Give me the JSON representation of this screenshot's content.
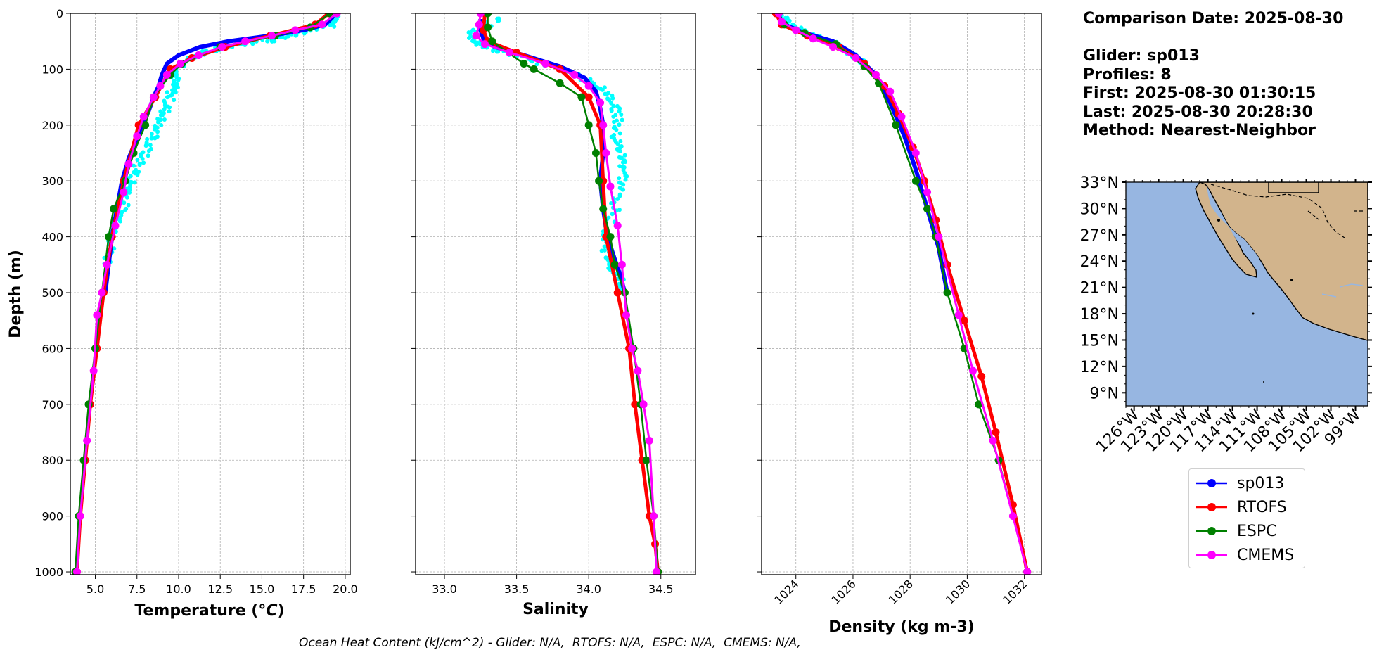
{
  "info": {
    "comparison_date": "Comparison Date: 2025-08-30",
    "glider": "Glider: sp013",
    "profiles": "Profiles: 8",
    "first": "First: 2025-08-30 01:30:15",
    "last": "Last: 2025-08-30 20:28:30",
    "method": "Method: Nearest-Neighbor"
  },
  "footer": "Ocean Heat Content (kJ/cm^2) - Glider: N/A,  RTOFS: N/A,  ESPC: N/A,  CMEMS: N/A,",
  "legend": [
    {
      "name": "sp013",
      "color": "#0000ff"
    },
    {
      "name": "RTOFS",
      "color": "#ff0000"
    },
    {
      "name": "ESPC",
      "color": "#008000"
    },
    {
      "name": "CMEMS",
      "color": "#ff00ff"
    }
  ],
  "raw_color": "#00ffff",
  "chart_data": [
    {
      "type": "line",
      "xlabel": "Temperature (°C)",
      "ylabel": "Depth (m)",
      "xlim": [
        3.5,
        20.3
      ],
      "ylim": [
        1005,
        0
      ],
      "xticks": [
        5.0,
        7.5,
        10.0,
        12.5,
        15.0,
        17.5,
        20.0
      ],
      "xtick_labels": [
        "5.0",
        "7.5",
        "10.0",
        "12.5",
        "15.0",
        "17.5",
        "20.0"
      ],
      "yticks": [
        0,
        100,
        200,
        300,
        400,
        500,
        600,
        700,
        800,
        900,
        1000
      ],
      "ytick_labels": [
        "0",
        "100",
        "200",
        "300",
        "400",
        "500",
        "600",
        "700",
        "800",
        "900",
        "1000"
      ],
      "grid": true,
      "raw": {
        "x": [
          19.6,
          19.2,
          18.0,
          16.8,
          15.0,
          12.8,
          11.2,
          10.3,
          9.8,
          9.7,
          9.5,
          9.2,
          8.8,
          8.3,
          7.8,
          7.3,
          7.0,
          6.6,
          6.3,
          5.9,
          5.7
        ],
        "y": [
          5,
          20,
          30,
          40,
          50,
          60,
          75,
          90,
          110,
          130,
          150,
          175,
          200,
          230,
          260,
          290,
          320,
          350,
          380,
          420,
          450
        ]
      },
      "series": [
        {
          "name": "sp013",
          "x": [
            19.3,
            18.8,
            17.5,
            15.5,
            13.0,
            11.3,
            10.0,
            9.3,
            9.0,
            8.8,
            8.5,
            8.2,
            7.8,
            7.4,
            7.0,
            6.6,
            6.3,
            6.0,
            5.8,
            5.6
          ],
          "y": [
            5,
            20,
            30,
            40,
            50,
            60,
            75,
            90,
            110,
            130,
            150,
            175,
            200,
            230,
            260,
            300,
            350,
            400,
            450,
            500
          ]
        },
        {
          "name": "RTOFS",
          "x": [
            19.0,
            18.2,
            15.5,
            12.8,
            10.8,
            9.5,
            8.6,
            7.6,
            6.7,
            6.0,
            5.5,
            5.1,
            4.7,
            4.4,
            4.1,
            3.9
          ],
          "y": [
            0,
            20,
            40,
            60,
            80,
            100,
            150,
            200,
            300,
            400,
            500,
            600,
            700,
            800,
            900,
            1000
          ]
        },
        {
          "name": "ESPC",
          "x": [
            19.1,
            17.9,
            15.8,
            12.5,
            10.2,
            9.5,
            8.5,
            8.0,
            7.3,
            6.8,
            6.1,
            5.8,
            5.4,
            5.0,
            4.6,
            4.3,
            4.0,
            3.8
          ],
          "y": [
            0,
            25,
            40,
            60,
            90,
            110,
            150,
            200,
            250,
            300,
            350,
            400,
            500,
            600,
            700,
            800,
            900,
            1000
          ]
        },
        {
          "name": "CMEMS",
          "x": [
            19.5,
            18.6,
            17.0,
            15.6,
            14.0,
            12.6,
            11.2,
            10.1,
            9.3,
            8.9,
            8.5,
            7.9,
            7.5,
            7.0,
            6.7,
            6.2,
            5.7,
            5.4,
            5.1,
            4.9,
            4.5,
            4.1,
            3.9
          ],
          "y": [
            0,
            20,
            30,
            40,
            50,
            60,
            75,
            90,
            110,
            130,
            150,
            185,
            220,
            270,
            320,
            380,
            450,
            500,
            540,
            640,
            765,
            900,
            1000
          ]
        }
      ]
    },
    {
      "type": "line",
      "xlabel": "Salinity",
      "ylabel": "",
      "xlim": [
        32.8,
        34.74
      ],
      "ylim": [
        1005,
        0
      ],
      "xticks": [
        33.0,
        33.5,
        34.0,
        34.5
      ],
      "xtick_labels": [
        "33.0",
        "33.5",
        "34.0",
        "34.5"
      ],
      "yticks": [
        0,
        100,
        200,
        300,
        400,
        500,
        600,
        700,
        800,
        900,
        1000
      ],
      "ytick_labels": [],
      "grid": true,
      "raw": {
        "x": [
          33.4,
          33.2,
          33.2,
          33.3,
          33.5,
          33.75,
          33.95,
          34.1,
          34.18,
          34.2,
          34.18,
          34.22,
          34.25,
          34.22,
          34.18,
          34.12,
          34.12,
          34.18,
          34.23,
          34.25
        ],
        "y": [
          10,
          30,
          50,
          60,
          75,
          95,
          115,
          135,
          160,
          190,
          220,
          250,
          280,
          310,
          350,
          400,
          430,
          460,
          480,
          500
        ]
      },
      "series": [
        {
          "name": "sp013",
          "x": [
            33.25,
            33.25,
            33.27,
            33.35,
            33.55,
            33.8,
            33.97,
            34.05,
            34.08,
            34.1,
            34.1,
            34.08,
            34.1,
            34.13,
            34.18,
            34.22,
            34.25
          ],
          "y": [
            10,
            30,
            45,
            60,
            75,
            95,
            115,
            140,
            170,
            200,
            250,
            300,
            350,
            400,
            440,
            470,
            500
          ]
        },
        {
          "name": "RTOFS",
          "x": [
            33.28,
            33.27,
            33.3,
            33.5,
            33.8,
            34.0,
            34.08,
            34.1,
            34.12,
            34.2,
            34.28,
            34.32,
            34.37,
            34.42,
            34.46,
            34.48
          ],
          "y": [
            0,
            30,
            50,
            70,
            100,
            150,
            200,
            300,
            400,
            500,
            600,
            700,
            800,
            900,
            950,
            1000
          ]
        },
        {
          "name": "ESPC",
          "x": [
            33.3,
            33.3,
            33.33,
            33.55,
            33.62,
            33.8,
            33.95,
            34.0,
            34.05,
            34.07,
            34.1,
            34.15,
            34.18,
            34.25,
            34.31,
            34.36,
            34.4,
            34.45,
            34.48
          ],
          "y": [
            0,
            25,
            50,
            90,
            100,
            125,
            150,
            200,
            250,
            300,
            350,
            400,
            450,
            500,
            600,
            700,
            800,
            900,
            1000
          ]
        },
        {
          "name": "CMEMS",
          "x": [
            33.25,
            33.24,
            33.22,
            33.28,
            33.45,
            33.7,
            33.9,
            34.0,
            34.08,
            34.1,
            34.12,
            34.15,
            34.2,
            34.23,
            34.26,
            34.3,
            34.34,
            34.38,
            34.42,
            34.45,
            34.47
          ],
          "y": [
            0,
            20,
            40,
            55,
            70,
            90,
            110,
            130,
            160,
            200,
            250,
            310,
            380,
            450,
            540,
            600,
            640,
            700,
            765,
            900,
            1000
          ]
        }
      ]
    },
    {
      "type": "line",
      "xlabel": "Density (kg m-3)",
      "ylabel": "",
      "xlim": [
        1022.8,
        1032.6
      ],
      "ylim": [
        1005,
        0
      ],
      "xticks": [
        1024,
        1026,
        1028,
        1030,
        1032
      ],
      "xtick_labels": [
        "1024",
        "1026",
        "1028",
        "1030",
        "1032"
      ],
      "yticks": [
        0,
        100,
        200,
        300,
        400,
        500,
        600,
        700,
        800,
        900,
        1000
      ],
      "ytick_labels": [],
      "grid": true,
      "raw": {
        "x": [
          1023.5,
          1023.8,
          1024.4,
          1025.2,
          1025.9,
          1026.4
        ],
        "y": [
          5,
          20,
          35,
          50,
          70,
          90
        ]
      },
      "series": [
        {
          "name": "sp013",
          "x": [
            1023.4,
            1023.6,
            1024.3,
            1025.3,
            1026.1,
            1026.8,
            1027.3,
            1027.8,
            1028.2,
            1028.6,
            1029.0,
            1029.3
          ],
          "y": [
            5,
            20,
            35,
            50,
            75,
            110,
            160,
            220,
            280,
            350,
            420,
            500
          ]
        },
        {
          "name": "RTOFS",
          "x": [
            1023.3,
            1023.5,
            1024.4,
            1025.5,
            1026.4,
            1027.1,
            1027.6,
            1028.1,
            1028.5,
            1028.9,
            1029.3,
            1029.9,
            1030.5,
            1031.0,
            1031.6,
            1032.1
          ],
          "y": [
            0,
            20,
            40,
            60,
            90,
            130,
            180,
            240,
            300,
            370,
            450,
            550,
            650,
            750,
            880,
            1000
          ]
        },
        {
          "name": "ESPC",
          "x": [
            1023.4,
            1023.6,
            1024.3,
            1025.4,
            1026.4,
            1026.9,
            1027.5,
            1028.2,
            1028.6,
            1028.9,
            1029.3,
            1029.9,
            1030.4,
            1031.1,
            1032.1
          ],
          "y": [
            0,
            20,
            35,
            55,
            95,
            125,
            200,
            300,
            350,
            400,
            500,
            600,
            700,
            800,
            1000
          ]
        },
        {
          "name": "CMEMS",
          "x": [
            1023.4,
            1023.5,
            1024.0,
            1024.6,
            1025.3,
            1026.1,
            1026.8,
            1027.3,
            1027.7,
            1028.2,
            1028.6,
            1029.0,
            1029.7,
            1030.2,
            1030.9,
            1031.6,
            1032.1
          ],
          "y": [
            0,
            15,
            30,
            45,
            60,
            80,
            110,
            140,
            185,
            250,
            320,
            400,
            540,
            640,
            765,
            900,
            1000
          ]
        }
      ]
    }
  ],
  "map": {
    "lon_range": [
      -127.0,
      -97.5
    ],
    "lat_range": [
      7.5,
      33.0
    ],
    "ocean_color": "#97b6e1",
    "land_color": "#d2b48c",
    "lat_ticks": [
      33,
      30,
      27,
      24,
      21,
      18,
      15,
      12,
      9
    ],
    "lat_labels": [
      "33°N",
      "30°N",
      "27°N",
      "24°N",
      "21°N",
      "18°N",
      "15°N",
      "12°N",
      "9°N"
    ],
    "lon_ticks": [
      -126,
      -123,
      -120,
      -117,
      -114,
      -111,
      -108,
      -105,
      -102,
      -99
    ],
    "lon_labels": [
      "126°W",
      "123°W",
      "120°W",
      "117°W",
      "114°W",
      "111°W",
      "108°W",
      "105°W",
      "102°W",
      "99°W"
    ]
  }
}
